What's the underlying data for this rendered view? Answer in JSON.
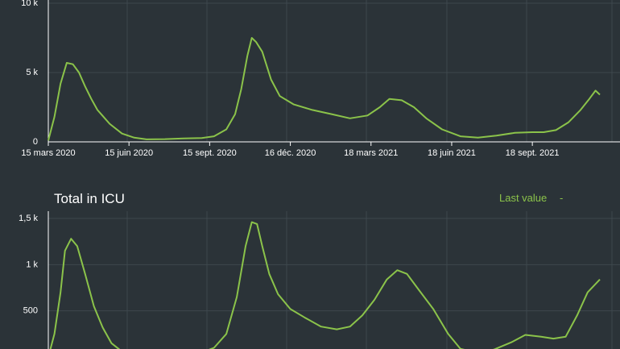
{
  "colors": {
    "background": "#2b3338",
    "line": "#8bc34a",
    "grid": "#3e474d",
    "text": "#ffffff"
  },
  "chart_data": [
    {
      "type": "line",
      "title": "",
      "xlabel": "",
      "ylabel": "",
      "grid": true,
      "xlim": [
        "2020-03-15",
        "2021-12-04"
      ],
      "ylim": [
        0,
        10000
      ],
      "y_ticks": [
        {
          "value": 0,
          "label": "0"
        },
        {
          "value": 5000,
          "label": "5 k"
        },
        {
          "value": 10000,
          "label": "10 k"
        }
      ],
      "x_ticks": [
        {
          "date": "2020-03-15",
          "label": "15 mars 2020"
        },
        {
          "date": "2020-06-15",
          "label": "15 juin 2020"
        },
        {
          "date": "2020-09-15",
          "label": "15 sept. 2020"
        },
        {
          "date": "2020-12-16",
          "label": "16 déc. 2020"
        },
        {
          "date": "2021-03-18",
          "label": "18 mars 2021"
        },
        {
          "date": "2021-06-18",
          "label": "18 juin 2021"
        },
        {
          "date": "2021-09-18",
          "label": "18 sept. 2021"
        }
      ],
      "series": [
        {
          "name": "",
          "x": [
            "2020-03-15",
            "2020-03-22",
            "2020-03-29",
            "2020-04-05",
            "2020-04-12",
            "2020-04-19",
            "2020-04-26",
            "2020-05-03",
            "2020-05-10",
            "2020-05-24",
            "2020-06-07",
            "2020-06-21",
            "2020-07-05",
            "2020-07-26",
            "2020-08-16",
            "2020-09-06",
            "2020-09-20",
            "2020-10-04",
            "2020-10-14",
            "2020-10-21",
            "2020-10-28",
            "2020-11-02",
            "2020-11-07",
            "2020-11-14",
            "2020-11-24",
            "2020-12-04",
            "2020-12-20",
            "2021-01-10",
            "2021-02-01",
            "2021-02-22",
            "2021-03-14",
            "2021-03-28",
            "2021-04-08",
            "2021-04-22",
            "2021-05-06",
            "2021-05-20",
            "2021-06-07",
            "2021-06-28",
            "2021-07-18",
            "2021-08-08",
            "2021-08-29",
            "2021-09-18",
            "2021-10-01",
            "2021-10-15",
            "2021-10-29",
            "2021-11-12",
            "2021-11-22",
            "2021-11-29",
            "2021-12-04"
          ],
          "values": [
            100,
            1800,
            4200,
            5700,
            5600,
            5000,
            4000,
            3100,
            2300,
            1300,
            600,
            300,
            180,
            200,
            250,
            280,
            400,
            900,
            2000,
            3800,
            6200,
            7500,
            7200,
            6500,
            4500,
            3300,
            2700,
            2300,
            2000,
            1700,
            1900,
            2500,
            3100,
            3000,
            2500,
            1700,
            900,
            400,
            300,
            450,
            650,
            700,
            700,
            850,
            1400,
            2300,
            3100,
            3700,
            3400
          ]
        }
      ]
    },
    {
      "type": "line",
      "title": "Total in ICU",
      "last_value_label": "Last value",
      "last_value": "-",
      "xlabel": "",
      "ylabel": "",
      "grid": true,
      "xlim": [
        "2020-03-15",
        "2021-12-04"
      ],
      "ylim": [
        0,
        1500
      ],
      "y_ticks": [
        {
          "value": 500,
          "label": "500"
        },
        {
          "value": 1000,
          "label": "1 k"
        },
        {
          "value": 1500,
          "label": "1,5 k"
        }
      ],
      "series": [
        {
          "name": "",
          "x": [
            "2020-03-15",
            "2020-03-22",
            "2020-03-29",
            "2020-04-03",
            "2020-04-10",
            "2020-04-17",
            "2020-04-26",
            "2020-05-06",
            "2020-05-16",
            "2020-05-26",
            "2020-06-07",
            "2020-06-21",
            "2020-07-05",
            "2020-07-26",
            "2020-08-16",
            "2020-09-06",
            "2020-09-20",
            "2020-10-04",
            "2020-10-16",
            "2020-10-26",
            "2020-11-02",
            "2020-11-08",
            "2020-11-14",
            "2020-11-22",
            "2020-12-02",
            "2020-12-16",
            "2021-01-01",
            "2021-01-20",
            "2021-02-07",
            "2021-02-22",
            "2021-03-08",
            "2021-03-22",
            "2021-04-05",
            "2021-04-17",
            "2021-04-28",
            "2021-05-12",
            "2021-05-28",
            "2021-06-14",
            "2021-06-28",
            "2021-07-15",
            "2021-08-05",
            "2021-08-25",
            "2021-09-10",
            "2021-09-28",
            "2021-10-12",
            "2021-10-26",
            "2021-11-08",
            "2021-11-20",
            "2021-12-04"
          ],
          "values": [
            0,
            250,
            700,
            1150,
            1280,
            1200,
            900,
            550,
            320,
            150,
            60,
            20,
            10,
            20,
            30,
            50,
            100,
            250,
            650,
            1200,
            1460,
            1440,
            1200,
            900,
            680,
            520,
            430,
            330,
            300,
            330,
            450,
            620,
            840,
            940,
            900,
            720,
            520,
            250,
            90,
            50,
            80,
            160,
            240,
            220,
            200,
            220,
            450,
            700,
            840
          ]
        }
      ]
    }
  ]
}
